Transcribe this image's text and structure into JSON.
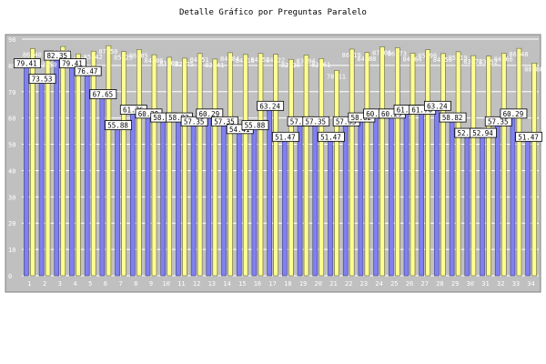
{
  "chart_data": {
    "type": "bar",
    "title": "Detalle Gráfico por Preguntas Paralelo",
    "xlabel": "",
    "ylabel": "",
    "ylim": [
      0,
      90
    ],
    "grid": true,
    "legend": "none",
    "categories": [
      "1",
      "2",
      "3",
      "4",
      "5",
      "6",
      "7",
      "8",
      "9",
      "10",
      "11",
      "12",
      "13",
      "14",
      "15",
      "16",
      "17",
      "18",
      "19",
      "20",
      "21",
      "22",
      "23",
      "24",
      "25",
      "26",
      "27",
      "28",
      "29",
      "30",
      "31",
      "32",
      "33",
      "34"
    ],
    "yticks": [
      "0",
      "10",
      "20",
      "30",
      "40",
      "50",
      "60",
      "70",
      "80",
      "90"
    ],
    "series": [
      {
        "values": [
          79.41,
          73.53,
          82.35,
          79.41,
          76.47,
          67.65,
          55.88,
          61.76,
          60.29,
          58.82,
          58.82,
          57.35,
          60.29,
          57.35,
          54.41,
          55.88,
          63.24,
          51.47,
          57.35,
          57.35,
          51.47,
          57.35,
          58.82,
          60.29,
          60.29,
          61.76,
          61.76,
          63.24,
          58.82,
          52.94,
          52.94,
          57.35,
          60.29,
          51.47
        ],
        "labels": [
          "79.41",
          "73.53",
          "82.35",
          "79.41",
          "76.47",
          "67.65",
          "55.88",
          "61.76",
          "60.29",
          "58.82",
          "58.82",
          "57.35",
          "60.29",
          "57.35",
          "54.41",
          "55.88",
          "63.24",
          "51.47",
          "57.35",
          "57.35",
          "51.47",
          "57.35",
          "58.82",
          "60.29",
          "60.29",
          "61.76",
          "61.76",
          "63.24",
          "58.82",
          "52.94",
          "52.94",
          "57.35",
          "60.29",
          "51.47"
        ],
        "color": "#8080f0"
      },
      {
        "values": [
          86.4,
          82.5,
          87.2,
          84.4,
          85.42,
          87.5,
          85.25,
          86.05,
          84.06,
          83.09,
          82.75,
          84.51,
          82.41,
          84.84,
          84.16,
          84.52,
          84.22,
          82.3,
          83.94,
          82.61,
          78.11,
          86.19,
          84.88,
          87.06,
          86.73,
          84.64,
          85.96,
          84.5,
          85.19,
          83.72,
          83.52,
          84.66,
          86.48,
          80.88
        ],
        "labels": [
          "86.40",
          "82.50",
          "87.20",
          "84.40",
          "85.42",
          "87.50",
          "85.25",
          "86.05",
          "84.06",
          "83.09",
          "82.75",
          "84.51",
          "82.41",
          "84.84",
          "84.16",
          "84.52",
          "84.22",
          "82.30",
          "83.94",
          "82.61",
          "78.11",
          "86.19",
          "84.88",
          "87.06",
          "86.73",
          "84.64",
          "85.96",
          "84.50",
          "85.19",
          "83.72",
          "83.52",
          "84.66",
          "86.48",
          "80.88"
        ],
        "color": "#ffff90"
      }
    ]
  }
}
